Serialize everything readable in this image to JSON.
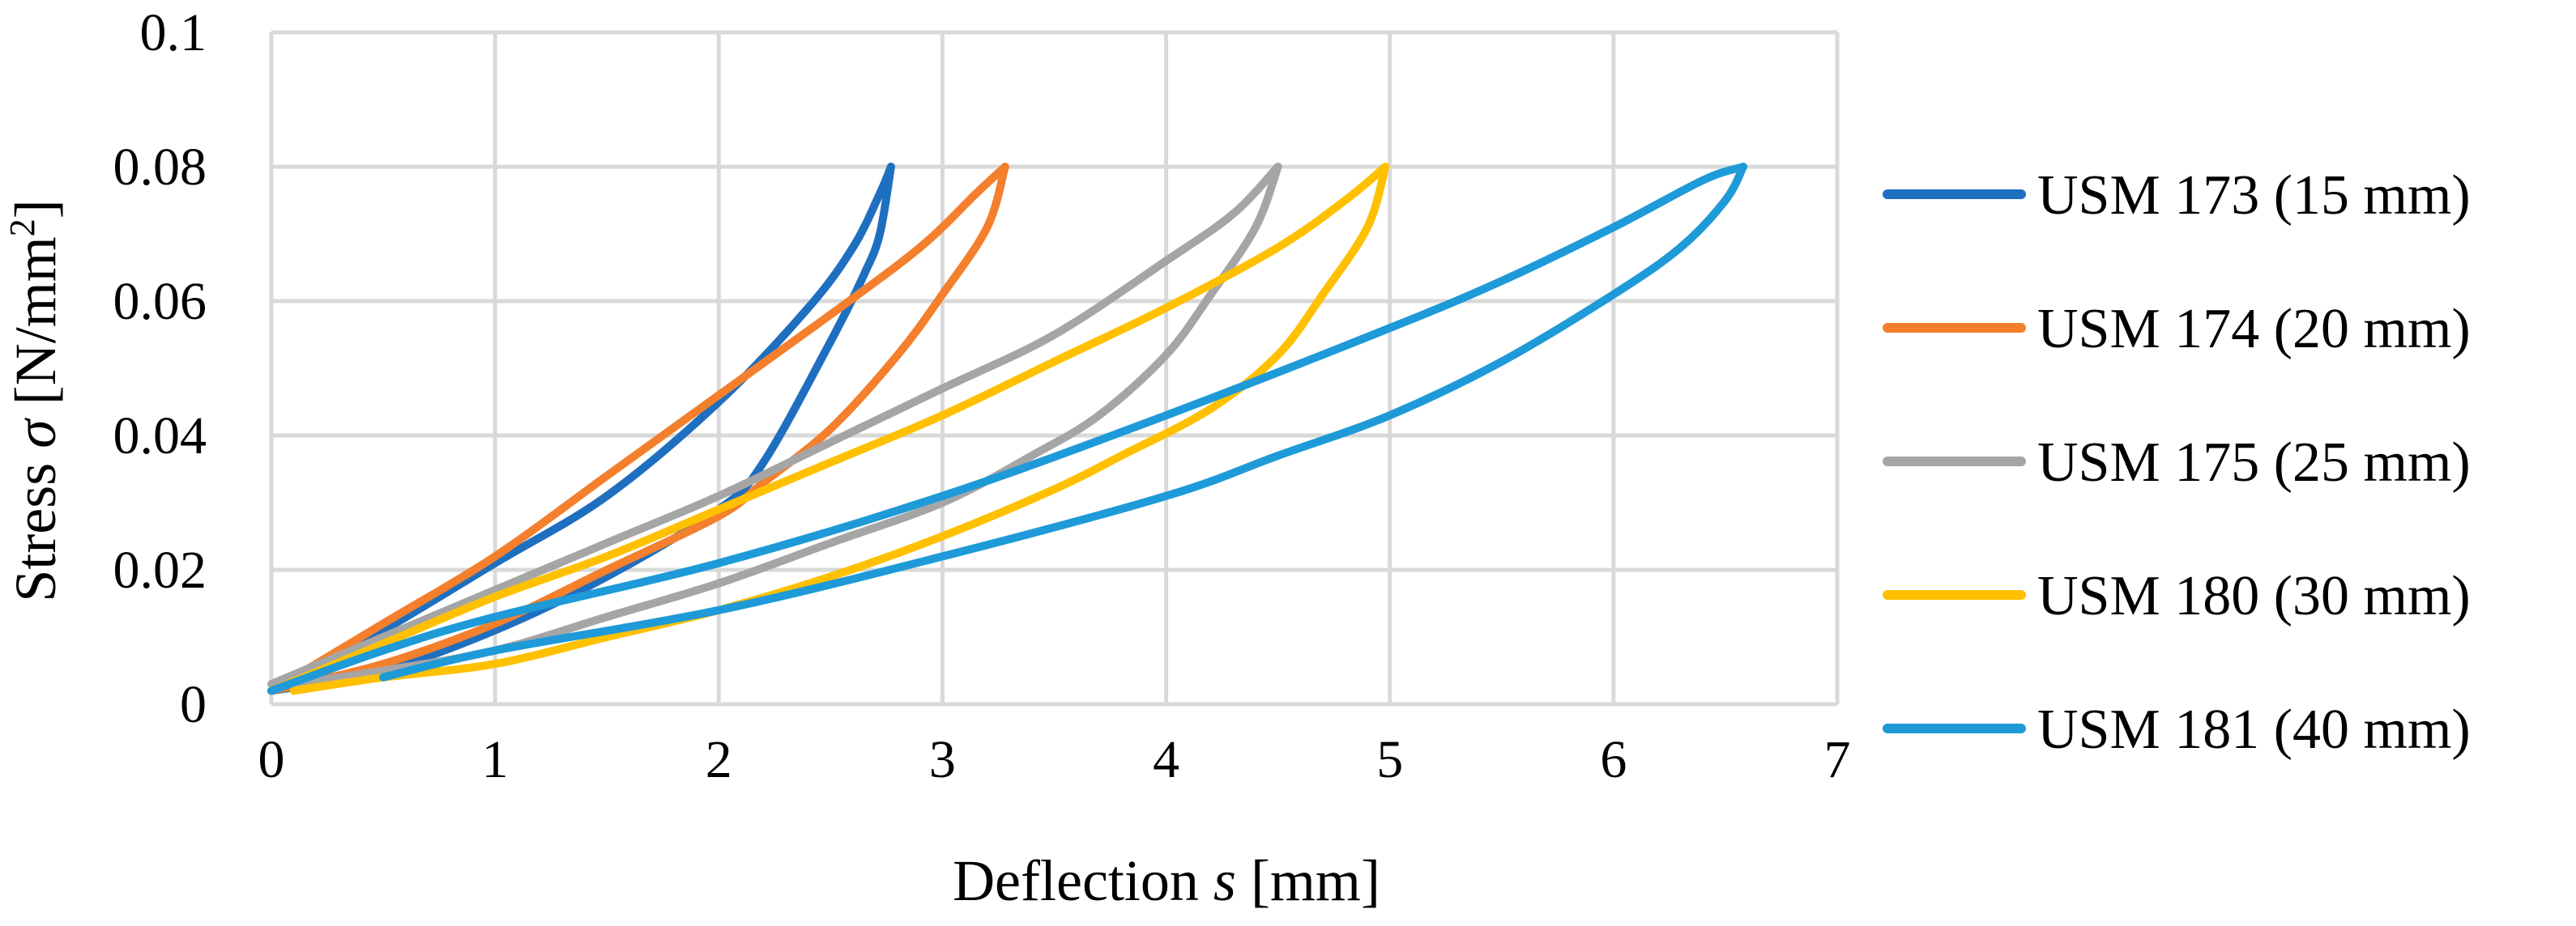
{
  "chart_data": {
    "type": "line",
    "title": "",
    "xlabel": {
      "main": "Deflection ",
      "italic": "s",
      "unit": " [mm]"
    },
    "ylabel": {
      "main": "Stress ",
      "italic": "σ",
      "unit": " [N/mm",
      "sup": "2",
      "close": "]"
    },
    "xlim": [
      0,
      7
    ],
    "ylim": [
      0,
      0.1
    ],
    "xticks": [
      0,
      1,
      2,
      3,
      4,
      5,
      6,
      7
    ],
    "yticks": [
      0,
      0.02,
      0.04,
      0.06,
      0.08,
      0.1
    ],
    "xtick_labels": [
      "0",
      "1",
      "2",
      "3",
      "4",
      "5",
      "6",
      "7"
    ],
    "ytick_labels": [
      "0",
      "0.02",
      "0.04",
      "0.06",
      "0.08",
      "0.1"
    ],
    "grid": true,
    "legend_position": "right",
    "series": [
      {
        "name": "USM 173 (15 mm)",
        "color": "#1F6FC0",
        "loading": [
          [
            0.05,
            0.003
          ],
          [
            0.5,
            0.011
          ],
          [
            1.0,
            0.021
          ],
          [
            1.5,
            0.031
          ],
          [
            2.0,
            0.045
          ],
          [
            2.4,
            0.059
          ],
          [
            2.6,
            0.068
          ],
          [
            2.72,
            0.076
          ],
          [
            2.77,
            0.08
          ]
        ],
        "unloading": [
          [
            2.77,
            0.08
          ],
          [
            2.72,
            0.07
          ],
          [
            2.65,
            0.064
          ],
          [
            2.5,
            0.054
          ],
          [
            2.2,
            0.036
          ],
          [
            2.0,
            0.029
          ],
          [
            1.5,
            0.019
          ],
          [
            1.0,
            0.011
          ],
          [
            0.5,
            0.005
          ],
          [
            0.0,
            0.002
          ]
        ]
      },
      {
        "name": "USM 174 (20 mm)",
        "color": "#F47F2C",
        "loading": [
          [
            0.0,
            0.002
          ],
          [
            0.5,
            0.012
          ],
          [
            1.0,
            0.022
          ],
          [
            1.5,
            0.034
          ],
          [
            2.0,
            0.046
          ],
          [
            2.5,
            0.058
          ],
          [
            2.9,
            0.068
          ],
          [
            3.15,
            0.076
          ],
          [
            3.28,
            0.08
          ]
        ],
        "unloading": [
          [
            3.28,
            0.08
          ],
          [
            3.2,
            0.071
          ],
          [
            3.0,
            0.061
          ],
          [
            2.8,
            0.052
          ],
          [
            2.5,
            0.041
          ],
          [
            2.2,
            0.033
          ],
          [
            2.0,
            0.028
          ],
          [
            1.5,
            0.02
          ],
          [
            1.0,
            0.012
          ],
          [
            0.5,
            0.006
          ],
          [
            0.0,
            0.002
          ]
        ]
      },
      {
        "name": "USM 175 (25 mm)",
        "color": "#A5A5A5",
        "loading": [
          [
            0.0,
            0.003
          ],
          [
            0.5,
            0.01
          ],
          [
            1.0,
            0.017
          ],
          [
            1.5,
            0.024
          ],
          [
            2.0,
            0.031
          ],
          [
            2.5,
            0.039
          ],
          [
            3.0,
            0.047
          ],
          [
            3.5,
            0.055
          ],
          [
            4.0,
            0.066
          ],
          [
            4.3,
            0.073
          ],
          [
            4.5,
            0.08
          ]
        ],
        "unloading": [
          [
            4.5,
            0.08
          ],
          [
            4.4,
            0.071
          ],
          [
            4.2,
            0.061
          ],
          [
            4.0,
            0.052
          ],
          [
            3.7,
            0.043
          ],
          [
            3.4,
            0.037
          ],
          [
            3.0,
            0.03
          ],
          [
            2.5,
            0.024
          ],
          [
            2.0,
            0.018
          ],
          [
            1.5,
            0.013
          ],
          [
            1.0,
            0.008
          ],
          [
            0.5,
            0.005
          ],
          [
            0.1,
            0.003
          ]
        ]
      },
      {
        "name": "USM 180 (30 mm)",
        "color": "#FFC000",
        "loading": [
          [
            0.0,
            0.002
          ],
          [
            0.5,
            0.009
          ],
          [
            1.0,
            0.016
          ],
          [
            1.5,
            0.022
          ],
          [
            2.0,
            0.029
          ],
          [
            2.5,
            0.036
          ],
          [
            3.0,
            0.043
          ],
          [
            3.5,
            0.051
          ],
          [
            4.0,
            0.059
          ],
          [
            4.5,
            0.068
          ],
          [
            4.8,
            0.075
          ],
          [
            4.98,
            0.08
          ]
        ],
        "unloading": [
          [
            4.98,
            0.08
          ],
          [
            4.9,
            0.071
          ],
          [
            4.7,
            0.061
          ],
          [
            4.5,
            0.052
          ],
          [
            4.2,
            0.044
          ],
          [
            3.8,
            0.037
          ],
          [
            3.5,
            0.032
          ],
          [
            3.0,
            0.025
          ],
          [
            2.5,
            0.019
          ],
          [
            2.0,
            0.014
          ],
          [
            1.5,
            0.01
          ],
          [
            1.0,
            0.006
          ],
          [
            0.5,
            0.004
          ],
          [
            0.1,
            0.002
          ]
        ]
      },
      {
        "name": "USM 181 (40 mm)",
        "color": "#1E9AD8",
        "loading": [
          [
            0.0,
            0.002
          ],
          [
            0.5,
            0.008
          ],
          [
            1.0,
            0.013
          ],
          [
            2.0,
            0.021
          ],
          [
            3.0,
            0.031
          ],
          [
            4.0,
            0.043
          ],
          [
            5.0,
            0.056
          ],
          [
            5.5,
            0.063
          ],
          [
            6.0,
            0.071
          ],
          [
            6.4,
            0.078
          ],
          [
            6.58,
            0.08
          ]
        ],
        "unloading": [
          [
            6.58,
            0.08
          ],
          [
            6.5,
            0.075
          ],
          [
            6.3,
            0.068
          ],
          [
            6.0,
            0.061
          ],
          [
            5.5,
            0.051
          ],
          [
            5.0,
            0.043
          ],
          [
            4.5,
            0.037
          ],
          [
            4.0,
            0.031
          ],
          [
            3.0,
            0.022
          ],
          [
            2.0,
            0.014
          ],
          [
            1.0,
            0.008
          ],
          [
            0.5,
            0.004
          ]
        ]
      }
    ]
  }
}
